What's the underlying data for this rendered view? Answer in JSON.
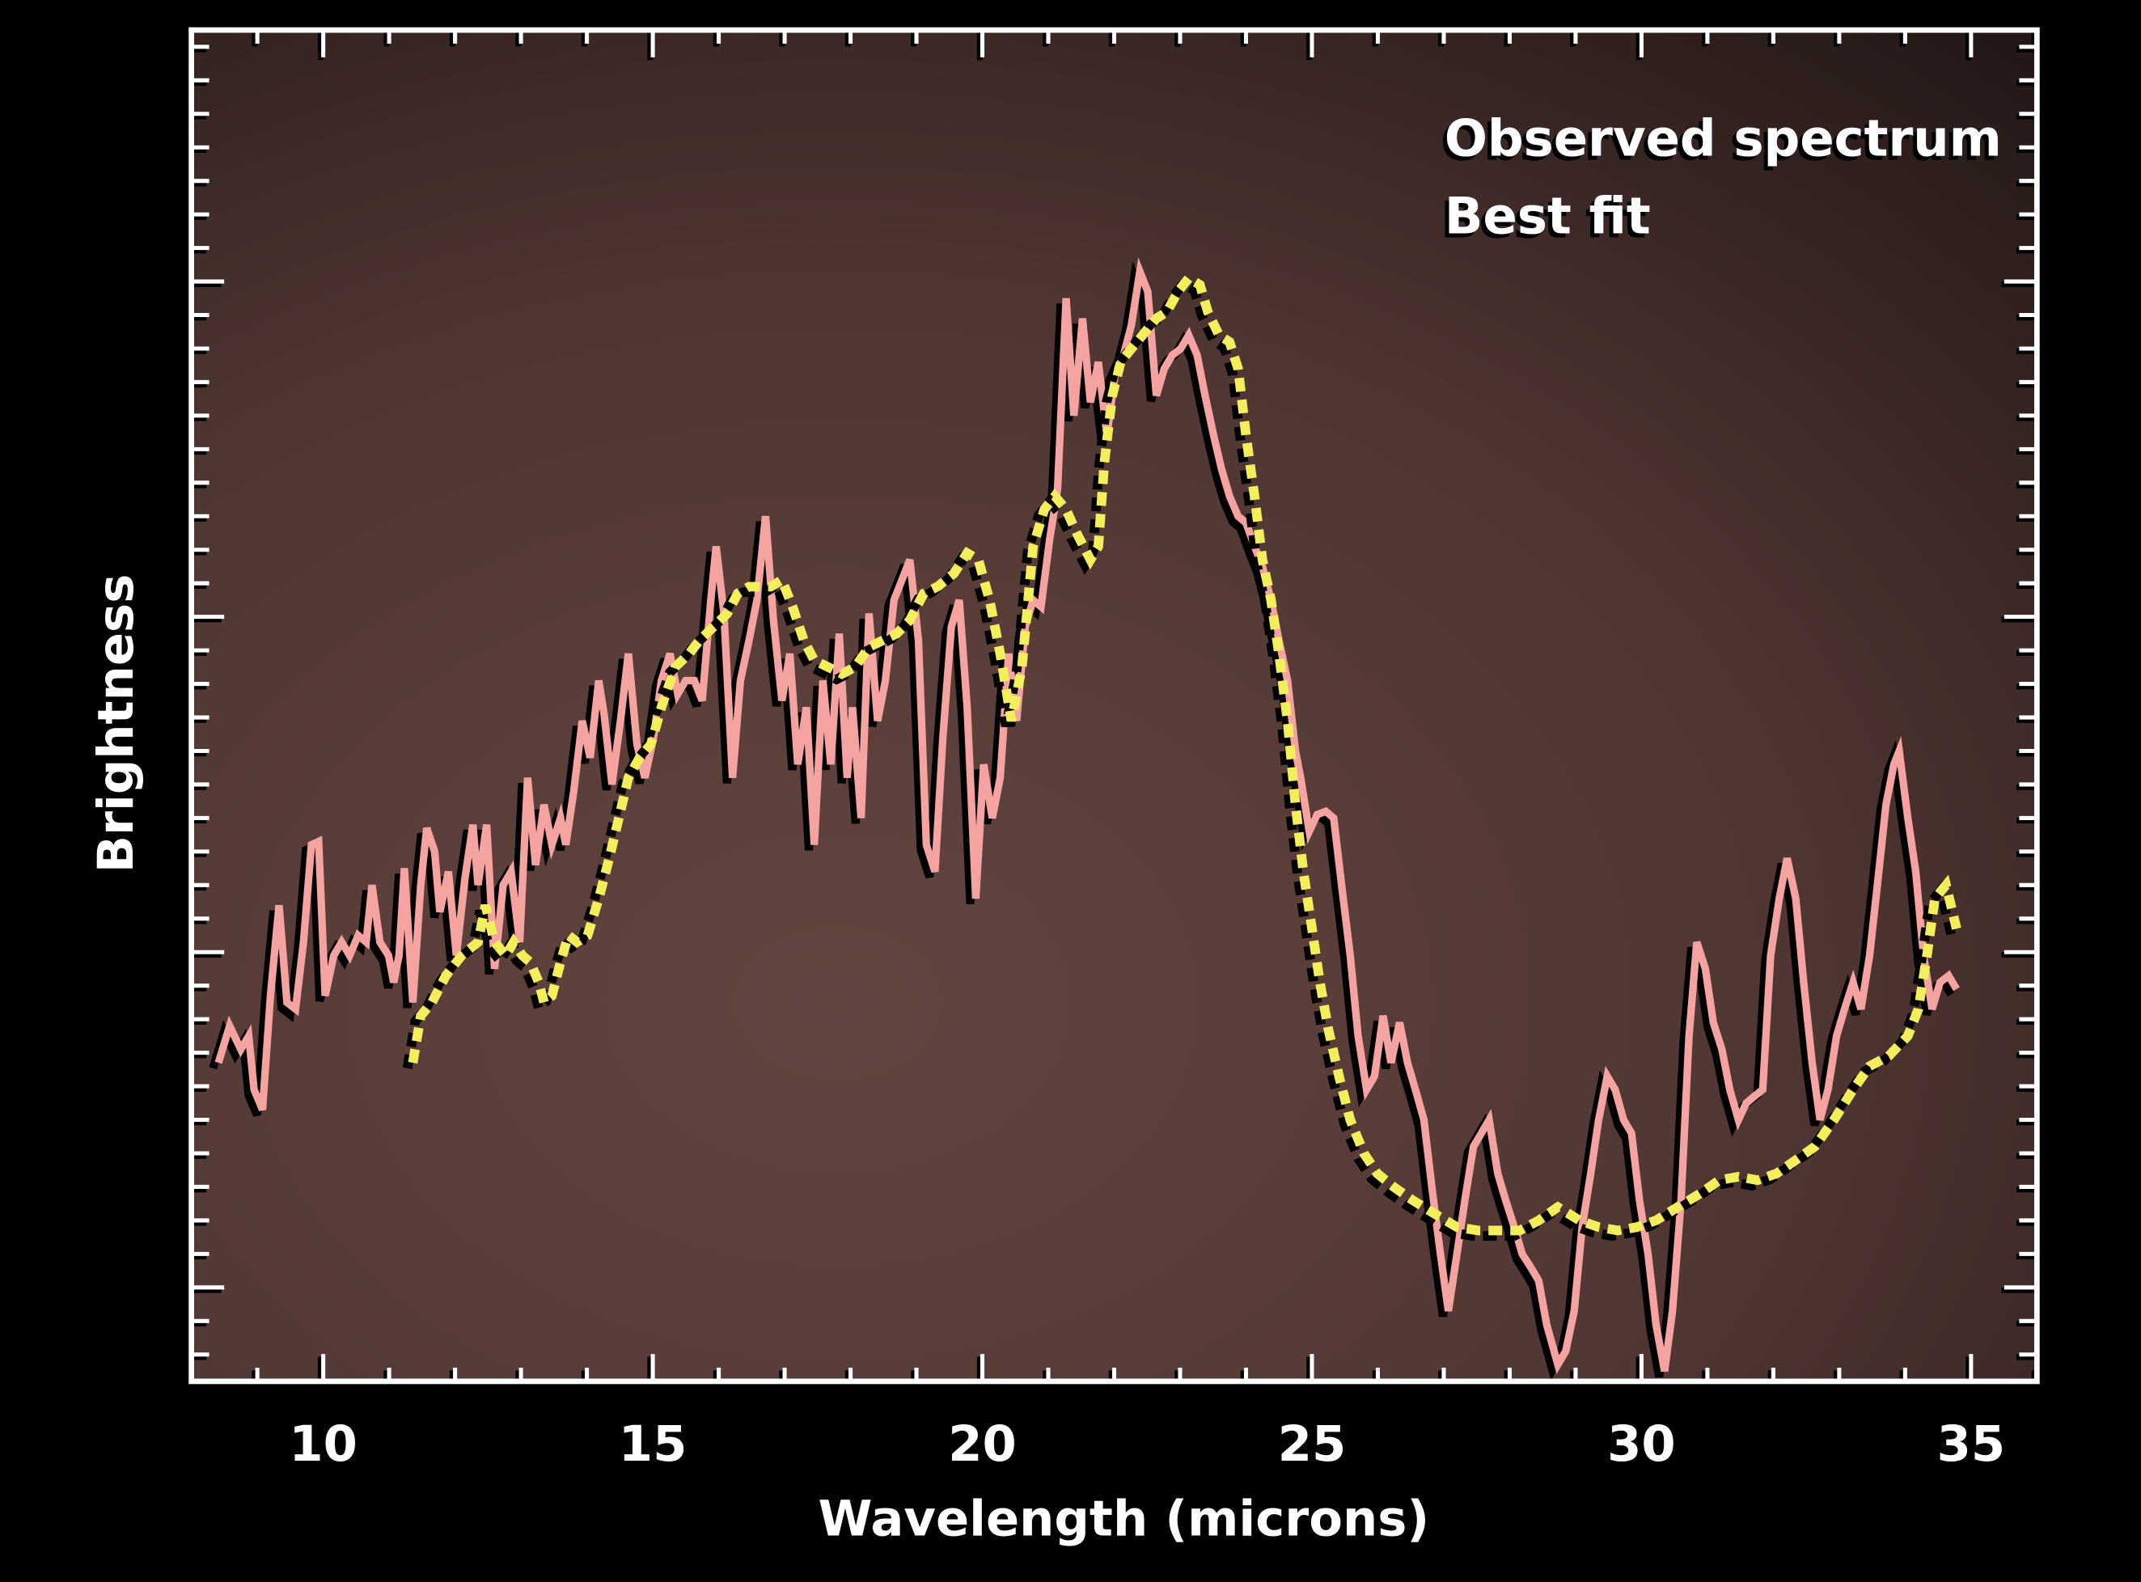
{
  "chart_data": {
    "type": "line",
    "title": "",
    "xlabel": "Wavelength (microns)",
    "ylabel": "Brightness",
    "xlim": [
      8,
      36
    ],
    "ylim": [
      0.72,
      4.75
    ],
    "x_major_ticks": [
      10,
      15,
      20,
      25,
      30,
      35
    ],
    "x_tick_labels": [
      "10",
      "15",
      "20",
      "25",
      "30",
      "35"
    ],
    "x_minor_step": 1,
    "y_major_ticks": [
      1,
      2,
      3,
      4
    ],
    "y_minor_step": 0.1,
    "y_tick_labels_shown": false,
    "grid": false,
    "legend": "top-right",
    "background": {
      "top_left": "#241816",
      "center": "#634540",
      "right": "#4a3330"
    },
    "series": [
      {
        "name": "Observed spectrum",
        "style": "solid",
        "color": "#f4a3a0",
        "x": [
          8.41,
          8.58,
          8.75,
          8.87,
          8.95,
          9.08,
          9.2,
          9.33,
          9.45,
          9.58,
          9.7,
          9.82,
          9.93,
          10.03,
          10.16,
          10.28,
          10.4,
          10.53,
          10.65,
          10.74,
          10.86,
          10.99,
          11.07,
          11.15,
          11.23,
          11.36,
          11.48,
          11.57,
          11.69,
          11.77,
          11.9,
          12.02,
          12.15,
          12.27,
          12.35,
          12.48,
          12.6,
          12.73,
          12.85,
          12.98,
          13.1,
          13.22,
          13.35,
          13.47,
          13.6,
          13.68,
          13.8,
          13.93,
          14.05,
          14.18,
          14.26,
          14.38,
          14.51,
          14.63,
          14.76,
          14.88,
          15.01,
          15.13,
          15.26,
          15.38,
          15.5,
          15.63,
          15.75,
          15.88,
          15.96,
          16.08,
          16.21,
          16.33,
          16.46,
          16.58,
          16.71,
          16.83,
          16.96,
          17.08,
          17.2,
          17.33,
          17.45,
          17.58,
          17.7,
          17.83,
          17.95,
          18.03,
          18.16,
          18.28,
          18.41,
          18.53,
          18.66,
          18.78,
          18.9,
          19.03,
          19.15,
          19.28,
          19.4,
          19.53,
          19.65,
          19.77,
          19.9,
          20.02,
          20.15,
          20.27,
          20.4,
          20.52,
          20.65,
          20.77,
          20.89,
          21.02,
          21.14,
          21.27,
          21.39,
          21.52,
          21.64,
          21.76,
          21.89,
          22.01,
          22.14,
          22.26,
          22.39,
          22.51,
          22.64,
          22.76,
          22.88,
          23.01,
          23.13,
          23.26,
          23.38,
          23.51,
          23.63,
          23.75,
          23.88,
          24.0,
          24.13,
          24.25,
          24.38,
          24.5,
          24.63,
          24.75,
          24.83,
          24.96,
          25.08,
          25.21,
          25.33,
          25.45,
          25.58,
          25.7,
          25.83,
          25.95,
          26.08,
          26.2,
          26.33,
          26.45,
          26.57,
          26.7,
          26.82,
          26.95,
          27.07,
          27.2,
          27.32,
          27.45,
          27.57,
          27.69,
          27.82,
          27.94,
          28.07,
          28.19,
          28.32,
          28.44,
          28.56,
          28.73,
          28.85,
          28.98,
          29.1,
          29.23,
          29.35,
          29.48,
          29.6,
          29.73,
          29.85,
          29.97,
          30.1,
          30.22,
          30.35,
          30.47,
          30.6,
          30.72,
          30.84,
          30.97,
          31.09,
          31.22,
          31.34,
          31.47,
          31.59,
          31.71,
          31.84,
          31.96,
          32.09,
          32.21,
          32.34,
          32.46,
          32.59,
          32.71,
          32.83,
          32.96,
          33.08,
          33.21,
          33.33,
          33.46,
          33.58,
          33.71,
          33.83,
          33.91,
          34.04,
          34.16,
          34.28,
          34.41,
          34.53,
          34.66,
          34.78
        ],
        "y": [
          1.67,
          1.78,
          1.71,
          1.75,
          1.59,
          1.53,
          1.87,
          2.14,
          1.85,
          1.83,
          2.03,
          2.32,
          2.33,
          1.87,
          1.99,
          2.03,
          1.99,
          2.05,
          2.03,
          2.2,
          2.03,
          1.99,
          1.91,
          1.99,
          2.25,
          1.85,
          2.2,
          2.37,
          2.3,
          2.12,
          2.24,
          1.99,
          2.22,
          2.38,
          2.2,
          2.38,
          1.95,
          2.2,
          2.24,
          2.03,
          2.52,
          2.26,
          2.44,
          2.32,
          2.4,
          2.32,
          2.48,
          2.69,
          2.58,
          2.81,
          2.71,
          2.5,
          2.69,
          2.89,
          2.62,
          2.52,
          2.64,
          2.81,
          2.89,
          2.77,
          2.81,
          2.81,
          2.75,
          3.05,
          3.21,
          3.01,
          2.52,
          2.81,
          2.93,
          3.05,
          3.3,
          2.99,
          2.75,
          2.89,
          2.56,
          2.73,
          2.32,
          2.81,
          2.56,
          2.95,
          2.52,
          2.73,
          2.4,
          3.01,
          2.69,
          2.81,
          3.05,
          3.11,
          3.17,
          2.93,
          2.32,
          2.24,
          2.64,
          2.97,
          3.05,
          2.73,
          2.16,
          2.56,
          2.4,
          2.52,
          2.89,
          2.69,
          2.97,
          3.05,
          3.03,
          3.23,
          3.38,
          3.95,
          3.6,
          3.89,
          3.64,
          3.76,
          3.54,
          3.72,
          3.78,
          3.87,
          4.03,
          3.97,
          3.66,
          3.74,
          3.78,
          3.8,
          3.84,
          3.78,
          3.66,
          3.54,
          3.44,
          3.36,
          3.3,
          3.28,
          3.21,
          3.15,
          3.05,
          2.93,
          2.81,
          2.6,
          2.52,
          2.36,
          2.41,
          2.42,
          2.4,
          2.2,
          1.99,
          1.75,
          1.59,
          1.63,
          1.81,
          1.67,
          1.79,
          1.67,
          1.59,
          1.5,
          1.3,
          1.1,
          0.93,
          1.1,
          1.26,
          1.42,
          1.46,
          1.5,
          1.34,
          1.26,
          1.18,
          1.1,
          1.06,
          1.02,
          0.89,
          0.77,
          0.81,
          0.93,
          1.18,
          1.34,
          1.5,
          1.63,
          1.59,
          1.5,
          1.46,
          1.26,
          1.1,
          0.89,
          0.75,
          0.93,
          1.26,
          1.75,
          2.03,
          1.95,
          1.79,
          1.71,
          1.59,
          1.5,
          1.55,
          1.57,
          1.59,
          1.99,
          2.16,
          2.28,
          2.16,
          1.91,
          1.67,
          1.5,
          1.59,
          1.75,
          1.83,
          1.91,
          1.83,
          1.99,
          2.2,
          2.44,
          2.56,
          2.6,
          2.4,
          2.24,
          1.99,
          1.83,
          1.91,
          1.93,
          1.89
        ]
      },
      {
        "name": "Best fit",
        "style": "dashed",
        "color": "#f2ee5c",
        "x": [
          11.36,
          11.48,
          11.65,
          11.86,
          12.1,
          12.35,
          12.46,
          12.6,
          12.77,
          12.89,
          13.02,
          13.14,
          13.27,
          13.35,
          13.47,
          13.6,
          13.72,
          13.85,
          14.01,
          14.18,
          14.34,
          14.51,
          14.63,
          14.8,
          14.97,
          15.13,
          15.34,
          15.55,
          15.71,
          15.92,
          16.13,
          16.29,
          16.46,
          16.62,
          16.79,
          16.96,
          17.12,
          17.29,
          17.45,
          17.66,
          17.87,
          18.07,
          18.28,
          18.49,
          18.7,
          18.9,
          19.11,
          19.32,
          19.57,
          19.77,
          19.94,
          20.11,
          20.27,
          20.44,
          20.6,
          20.77,
          20.94,
          21.1,
          21.27,
          21.43,
          21.64,
          21.76,
          21.85,
          21.97,
          22.1,
          22.26,
          22.43,
          22.64,
          22.8,
          22.97,
          23.13,
          23.3,
          23.42,
          23.59,
          23.75,
          23.88,
          24.0,
          24.13,
          24.25,
          24.38,
          24.5,
          24.63,
          24.75,
          24.87,
          25.0,
          25.12,
          25.25,
          25.41,
          25.58,
          25.79,
          25.99,
          26.24,
          26.53,
          26.86,
          27.2,
          27.53,
          27.86,
          28.15,
          28.44,
          28.73,
          29.06,
          29.35,
          29.64,
          29.93,
          30.22,
          30.55,
          30.89,
          31.18,
          31.47,
          31.76,
          32.05,
          32.34,
          32.63,
          32.92,
          33.21,
          33.46,
          33.75,
          34.04,
          34.2,
          34.33,
          34.45,
          34.62,
          34.78
        ],
        "y": [
          1.67,
          1.81,
          1.85,
          1.93,
          1.99,
          2.03,
          2.14,
          2.03,
          1.99,
          2.03,
          1.99,
          1.97,
          1.91,
          1.85,
          1.87,
          1.97,
          2.05,
          2.03,
          2.05,
          2.16,
          2.28,
          2.42,
          2.52,
          2.58,
          2.62,
          2.73,
          2.85,
          2.89,
          2.93,
          2.97,
          3.01,
          3.07,
          3.09,
          3.09,
          3.09,
          3.11,
          3.03,
          2.93,
          2.87,
          2.85,
          2.83,
          2.85,
          2.91,
          2.93,
          2.95,
          2.99,
          3.07,
          3.09,
          3.13,
          3.19,
          3.17,
          3.05,
          2.89,
          2.69,
          2.85,
          3.21,
          3.32,
          3.36,
          3.32,
          3.25,
          3.17,
          3.21,
          3.46,
          3.66,
          3.76,
          3.8,
          3.84,
          3.89,
          3.91,
          3.97,
          4.01,
          3.99,
          3.91,
          3.84,
          3.82,
          3.74,
          3.54,
          3.36,
          3.17,
          3.05,
          2.89,
          2.69,
          2.44,
          2.24,
          2.07,
          1.91,
          1.77,
          1.63,
          1.5,
          1.4,
          1.34,
          1.3,
          1.26,
          1.22,
          1.18,
          1.17,
          1.17,
          1.17,
          1.2,
          1.24,
          1.2,
          1.18,
          1.17,
          1.18,
          1.2,
          1.24,
          1.28,
          1.32,
          1.33,
          1.32,
          1.34,
          1.38,
          1.42,
          1.5,
          1.59,
          1.66,
          1.69,
          1.75,
          1.83,
          1.99,
          2.16,
          2.2,
          2.07
        ]
      }
    ]
  }
}
